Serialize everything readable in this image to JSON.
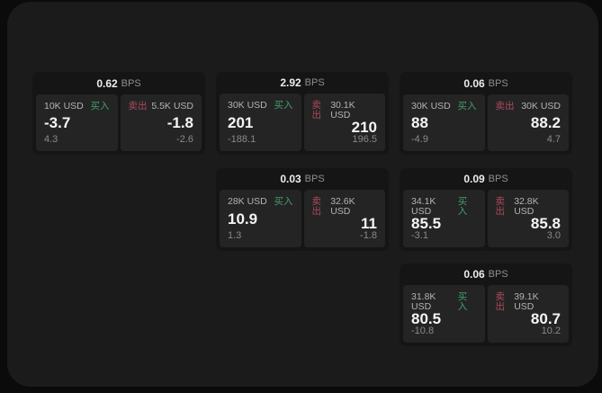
{
  "labels": {
    "bps": "BPS",
    "buy": "买入",
    "sell": "卖出"
  },
  "colors": {
    "page_bg": "#0b0b0b",
    "window_bg": "#1b1b1b",
    "card_bg": "#151515",
    "tile_bg": "#242424",
    "buy_green": "#3fa06c",
    "sell_red": "#ad4a5c",
    "value_text": "#f5f5f5",
    "muted_text": "#8a8a8a"
  },
  "cards": [
    {
      "bps": "0.62",
      "buy": {
        "amount": "10K USD",
        "value": "-3.7",
        "change": "4.3"
      },
      "sell": {
        "amount": "5.5K USD",
        "value": "-1.8",
        "change": "-2.6"
      }
    },
    {
      "bps": "2.92",
      "buy": {
        "amount": "30K USD",
        "value": "201",
        "change": "-188.1"
      },
      "sell": {
        "amount": "30.1K USD",
        "value": "210",
        "change": "196.5"
      }
    },
    {
      "bps": "0.06",
      "buy": {
        "amount": "30K USD",
        "value": "88",
        "change": "-4.9"
      },
      "sell": {
        "amount": "30K USD",
        "value": "88.2",
        "change": "4.7"
      }
    },
    {
      "bps": "0.03",
      "buy": {
        "amount": "28K USD",
        "value": "10.9",
        "change": "1.3"
      },
      "sell": {
        "amount": "32.6K USD",
        "value": "11",
        "change": "-1.8"
      }
    },
    {
      "bps": "0.09",
      "buy": {
        "amount": "34.1K USD",
        "value": "85.5",
        "change": "-3.1"
      },
      "sell": {
        "amount": "32.8K USD",
        "value": "85.8",
        "change": "3.0"
      }
    },
    {
      "bps": "0.06",
      "buy": {
        "amount": "31.8K USD",
        "value": "80.5",
        "change": "-10.8"
      },
      "sell": {
        "amount": "39.1K USD",
        "value": "80.7",
        "change": "10.2"
      }
    }
  ]
}
